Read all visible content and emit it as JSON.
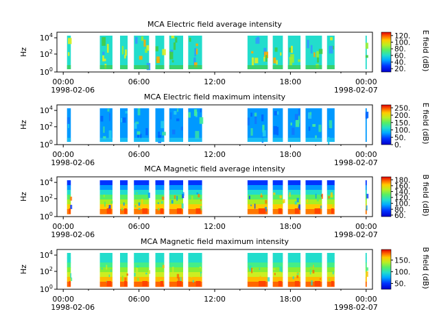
{
  "chart_data": [
    {
      "type": "heatmap",
      "title": "MCA  Electric field average intensity",
      "ylabel": "Hz",
      "y_ticks": [
        "10^0",
        "10^2",
        "10^4"
      ],
      "x_ticks": [
        "00:00",
        "06:00",
        "12:00",
        "18:00",
        "00:00"
      ],
      "x_dates": [
        "1998-02-06",
        "1998-02-07"
      ],
      "colorbar": {
        "label": "E field (dB)",
        "ticks": [
          "20.",
          "40.",
          "60.",
          "80.",
          "100.",
          "120."
        ],
        "range": [
          10,
          130
        ]
      },
      "segments_hours": [
        [
          0.3,
          0.6
        ],
        [
          2.9,
          3.9
        ],
        [
          4.5,
          5.1
        ],
        [
          5.6,
          6.8
        ],
        [
          7.3,
          8.0
        ],
        [
          8.4,
          9.5
        ],
        [
          9.9,
          11.0
        ],
        [
          14.6,
          16.2
        ],
        [
          16.6,
          17.4
        ],
        [
          17.8,
          18.8
        ],
        [
          19.2,
          20.5
        ],
        [
          20.9,
          21.5
        ],
        [
          23.95,
          24.05
        ]
      ],
      "bg": "#22ddcc",
      "accents": [
        "#44cc44",
        "#99ee33",
        "#ddee22",
        "#3399ff",
        "#ffaa00"
      ]
    },
    {
      "type": "heatmap",
      "title": "MCA  Electric field maximum intensity",
      "ylabel": "Hz",
      "y_ticks": [
        "10^0",
        "10^2",
        "10^4"
      ],
      "x_ticks": [
        "00:00",
        "06:00",
        "12:00",
        "18:00",
        "00:00"
      ],
      "x_dates": [
        "1998-02-06",
        "1998-02-07"
      ],
      "colorbar": {
        "label": "E field (dB)",
        "ticks": [
          "0.",
          "50.",
          "100.",
          "150.",
          "200.",
          "250."
        ],
        "range": [
          0,
          270
        ]
      },
      "segments_hours": [
        [
          0.3,
          0.6
        ],
        [
          2.9,
          3.9
        ],
        [
          4.5,
          5.1
        ],
        [
          5.6,
          6.8
        ],
        [
          7.3,
          8.0
        ],
        [
          8.4,
          9.5
        ],
        [
          9.9,
          11.0
        ],
        [
          14.6,
          16.2
        ],
        [
          16.6,
          17.4
        ],
        [
          17.8,
          18.8
        ],
        [
          19.2,
          20.5
        ],
        [
          20.9,
          21.5
        ],
        [
          23.95,
          24.05
        ]
      ],
      "bg": "#0099ff",
      "accents": [
        "#22ccee",
        "#33ddaa",
        "#0066ff",
        "#44ee99",
        "#1177ff"
      ]
    },
    {
      "type": "heatmap",
      "title": "MCA  Magnetic field average intensity",
      "ylabel": "Hz",
      "y_ticks": [
        "10^0",
        "10^2",
        "10^4"
      ],
      "x_ticks": [
        "00:00",
        "06:00",
        "12:00",
        "18:00",
        "00:00"
      ],
      "x_dates": [
        "1998-02-06",
        "1998-02-07"
      ],
      "colorbar": {
        "label": "B field (dB)",
        "ticks": [
          "60.",
          "80.",
          "100.",
          "120.",
          "140.",
          "160.",
          "180."
        ],
        "range": [
          55,
          190
        ]
      },
      "segments_hours": [
        [
          0.3,
          0.6
        ],
        [
          2.9,
          3.9
        ],
        [
          4.5,
          5.1
        ],
        [
          5.6,
          6.8
        ],
        [
          7.3,
          8.0
        ],
        [
          8.4,
          9.5
        ],
        [
          9.9,
          11.0
        ],
        [
          14.6,
          16.2
        ],
        [
          16.6,
          17.4
        ],
        [
          17.8,
          18.8
        ],
        [
          19.2,
          20.5
        ],
        [
          20.9,
          21.5
        ],
        [
          23.95,
          24.05
        ]
      ],
      "bands": [
        "#0033ff",
        "#0099ff",
        "#22ddcc",
        "#55ee66",
        "#aaee22",
        "#ffcc00",
        "#ff7700"
      ]
    },
    {
      "type": "heatmap",
      "title": "MCA  Magnetic field maximum intensity",
      "ylabel": "Hz",
      "y_ticks": [
        "10^0",
        "10^2",
        "10^4"
      ],
      "x_ticks": [
        "00:00",
        "06:00",
        "12:00",
        "18:00",
        "00:00"
      ],
      "x_dates": [
        "1998-02-06",
        "1998-02-07"
      ],
      "colorbar": {
        "label": "B field (dB)",
        "ticks": [
          "50.",
          "100.",
          "150."
        ],
        "range": [
          25,
          195
        ]
      },
      "segments_hours": [
        [
          0.3,
          0.6
        ],
        [
          2.9,
          3.9
        ],
        [
          4.5,
          5.1
        ],
        [
          5.6,
          6.8
        ],
        [
          7.3,
          8.0
        ],
        [
          8.4,
          9.5
        ],
        [
          9.9,
          11.0
        ],
        [
          14.6,
          16.2
        ],
        [
          16.6,
          17.4
        ],
        [
          17.8,
          18.8
        ],
        [
          19.2,
          20.5
        ],
        [
          20.9,
          21.5
        ],
        [
          23.95,
          24.05
        ]
      ],
      "bands": [
        "#22ddcc",
        "#22ddcc",
        "#44ee88",
        "#88ee33",
        "#ccee22",
        "#ffbb00",
        "#ff6600"
      ]
    }
  ]
}
